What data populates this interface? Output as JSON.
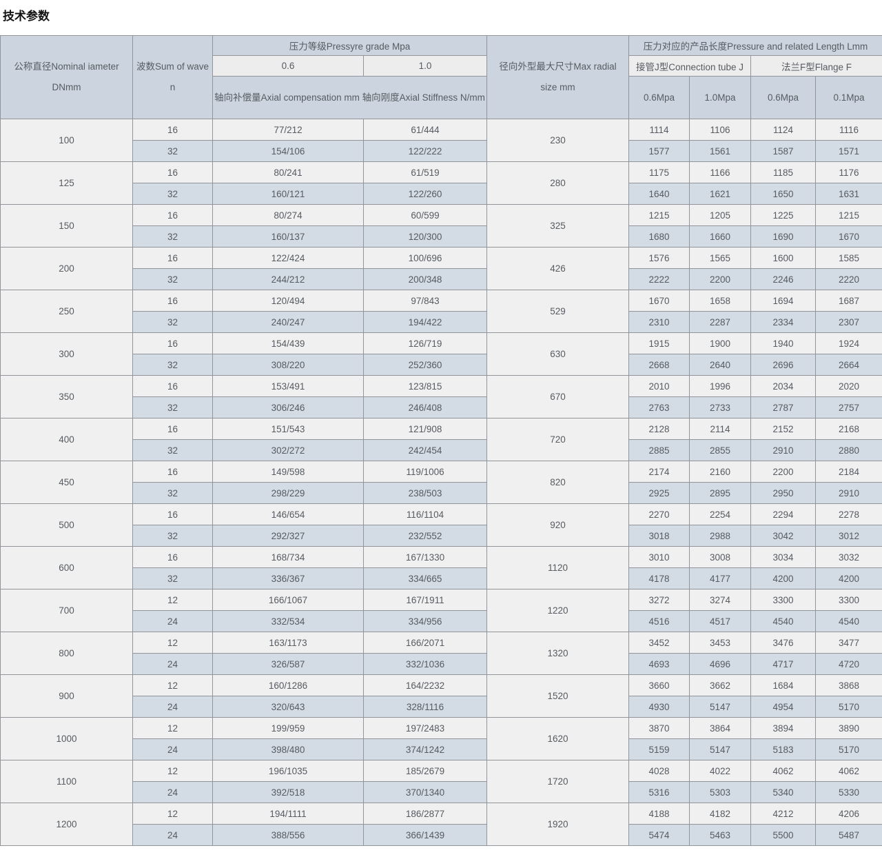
{
  "page": {
    "title": "技术参数"
  },
  "colors": {
    "header_bg": "#ccd5df",
    "subheader_bg": "#ededed",
    "row_light_bg": "#f0f0f0",
    "row_alt_bg": "#d3dce4",
    "border": "#919599",
    "header_text": "#4c525a",
    "body_text": "#565b61",
    "title_text": "#141414"
  },
  "table": {
    "header": {
      "dn": "公称直径Nominal iameter\nDNmm",
      "wave": "波数Sum of wave\nn",
      "pressure_group": "压力等级Pressyre grade Mpa",
      "pressure_06": "0.6",
      "pressure_10": "1.0",
      "axial_label": "轴向补偿量Axial compensation mm 轴向刚度Axial Stiffness N/mm",
      "radial": "径向外型最大尺寸Max radial\nsize mm",
      "length_group": "压力对应的产品长度Pressure and related Length Lmm",
      "connection_group": "接管J型Connection tube J",
      "flange_group": "法兰F型Flange F",
      "sub_cols": [
        "0.6Mpa",
        "1.0Mpa",
        "0.6Mpa",
        "0.1Mpa"
      ]
    },
    "groups": [
      {
        "dn": "100",
        "radial": "230",
        "rows": [
          [
            "16",
            "77/212",
            "61/444",
            "1114",
            "1106",
            "1124",
            "1116"
          ],
          [
            "32",
            "154/106",
            "122/222",
            "1577",
            "1561",
            "1587",
            "1571"
          ]
        ]
      },
      {
        "dn": "125",
        "radial": "280",
        "rows": [
          [
            "16",
            "80/241",
            "61/519",
            "1175",
            "1166",
            "1185",
            "1176"
          ],
          [
            "32",
            "160/121",
            "122/260",
            "1640",
            "1621",
            "1650",
            "1631"
          ]
        ]
      },
      {
        "dn": "150",
        "radial": "325",
        "rows": [
          [
            "16",
            "80/274",
            "60/599",
            "1215",
            "1205",
            "1225",
            "1215"
          ],
          [
            "32",
            "160/137",
            "120/300",
            "1680",
            "1660",
            "1690",
            "1670"
          ]
        ]
      },
      {
        "dn": "200",
        "radial": "426",
        "rows": [
          [
            "16",
            "122/424",
            "100/696",
            "1576",
            "1565",
            "1600",
            "1585"
          ],
          [
            "32",
            "244/212",
            "200/348",
            "2222",
            "2200",
            "2246",
            "2220"
          ]
        ]
      },
      {
        "dn": "250",
        "radial": "529",
        "rows": [
          [
            "16",
            "120/494",
            "97/843",
            "1670",
            "1658",
            "1694",
            "1687"
          ],
          [
            "32",
            "240/247",
            "194/422",
            "2310",
            "2287",
            "2334",
            "2307"
          ]
        ]
      },
      {
        "dn": "300",
        "radial": "630",
        "rows": [
          [
            "16",
            "154/439",
            "126/719",
            "1915",
            "1900",
            "1940",
            "1924"
          ],
          [
            "32",
            "308/220",
            "252/360",
            "2668",
            "2640",
            "2696",
            "2664"
          ]
        ]
      },
      {
        "dn": "350",
        "radial": "670",
        "rows": [
          [
            "16",
            "153/491",
            "123/815",
            "2010",
            "1996",
            "2034",
            "2020"
          ],
          [
            "32",
            "306/246",
            "246/408",
            "2763",
            "2733",
            "2787",
            "2757"
          ]
        ]
      },
      {
        "dn": "400",
        "radial": "720",
        "rows": [
          [
            "16",
            "151/543",
            "121/908",
            "2128",
            "2114",
            "2152",
            "2168"
          ],
          [
            "32",
            "302/272",
            "242/454",
            "2885",
            "2855",
            "2910",
            "2880"
          ]
        ]
      },
      {
        "dn": "450",
        "radial": "820",
        "rows": [
          [
            "16",
            "149/598",
            "119/1006",
            "2174",
            "2160",
            "2200",
            "2184"
          ],
          [
            "32",
            "298/229",
            "238/503",
            "2925",
            "2895",
            "2950",
            "2910"
          ]
        ]
      },
      {
        "dn": "500",
        "radial": "920",
        "rows": [
          [
            "16",
            "146/654",
            "116/1104",
            "2270",
            "2254",
            "2294",
            "2278"
          ],
          [
            "32",
            "292/327",
            "232/552",
            "3018",
            "2988",
            "3042",
            "3012"
          ]
        ]
      },
      {
        "dn": "600",
        "radial": "1120",
        "rows": [
          [
            "16",
            "168/734",
            "167/1330",
            "3010",
            "3008",
            "3034",
            "3032"
          ],
          [
            "32",
            "336/367",
            "334/665",
            "4178",
            "4177",
            "4200",
            "4200"
          ]
        ]
      },
      {
        "dn": "700",
        "radial": "1220",
        "rows": [
          [
            "12",
            "166/1067",
            "167/1911",
            "3272",
            "3274",
            "3300",
            "3300"
          ],
          [
            "24",
            "332/534",
            "334/956",
            "4516",
            "4517",
            "4540",
            "4540"
          ]
        ]
      },
      {
        "dn": "800",
        "radial": "1320",
        "rows": [
          [
            "12",
            "163/1173",
            "166/2071",
            "3452",
            "3453",
            "3476",
            "3477"
          ],
          [
            "24",
            "326/587",
            "332/1036",
            "4693",
            "4696",
            "4717",
            "4720"
          ]
        ]
      },
      {
        "dn": "900",
        "radial": "1520",
        "rows": [
          [
            "12",
            "160/1286",
            "164/2232",
            "3660",
            "3662",
            "1684",
            "3868"
          ],
          [
            "24",
            "320/643",
            "328/1116",
            "4930",
            "5147",
            "4954",
            "5170"
          ]
        ]
      },
      {
        "dn": "1000",
        "radial": "1620",
        "rows": [
          [
            "12",
            "199/959",
            "197/2483",
            "3870",
            "3864",
            "3894",
            "3890"
          ],
          [
            "24",
            "398/480",
            "374/1242",
            "5159",
            "5147",
            "5183",
            "5170"
          ]
        ]
      },
      {
        "dn": "1100",
        "radial": "1720",
        "rows": [
          [
            "12",
            "196/1035",
            "185/2679",
            "4028",
            "4022",
            "4062",
            "4062"
          ],
          [
            "24",
            "392/518",
            "370/1340",
            "5316",
            "5303",
            "5340",
            "5330"
          ]
        ]
      },
      {
        "dn": "1200",
        "radial": "1920",
        "rows": [
          [
            "12",
            "194/1111",
            "186/2877",
            "4188",
            "4182",
            "4212",
            "4206"
          ],
          [
            "24",
            "388/556",
            "366/1439",
            "5474",
            "5463",
            "5500",
            "5487"
          ]
        ]
      }
    ]
  }
}
